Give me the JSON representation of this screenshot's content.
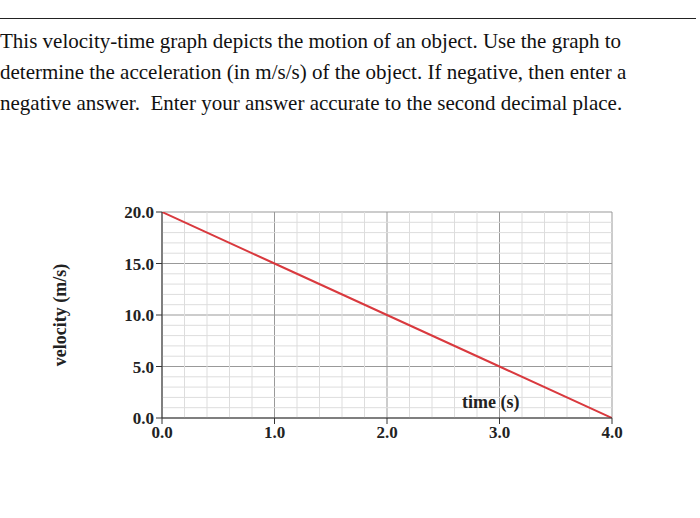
{
  "question": {
    "lines": [
      "This velocity-time graph depicts the motion of an object. Use the graph to",
      "determine the acceleration (in m/s/s) of the object. If negative, then enter a",
      "negative answer.  Enter your answer accurate to the second decimal place."
    ]
  },
  "chart_data": {
    "type": "line",
    "x_label": "time (s)",
    "y_label": "velocity (m/s)",
    "x": [
      0,
      1,
      2,
      3,
      4
    ],
    "series": [
      {
        "name": "velocity",
        "color": "#d9393e",
        "values": [
          20,
          15,
          10,
          5,
          0
        ]
      }
    ],
    "xlim": [
      0,
      4
    ],
    "ylim": [
      0,
      20
    ],
    "xticks": [
      {
        "value": 0,
        "label": "0.0"
      },
      {
        "value": 1,
        "label": "1.0"
      },
      {
        "value": 2,
        "label": "2.0"
      },
      {
        "value": 3,
        "label": "3.0"
      },
      {
        "value": 4,
        "label": "4.0"
      }
    ],
    "yticks": [
      {
        "value": 0,
        "label": "0.0"
      },
      {
        "value": 5,
        "label": "5.0"
      },
      {
        "value": 10,
        "label": "10.0"
      },
      {
        "value": 15,
        "label": "15.0"
      },
      {
        "value": 20,
        "label": "20.0"
      }
    ],
    "grid": true
  }
}
